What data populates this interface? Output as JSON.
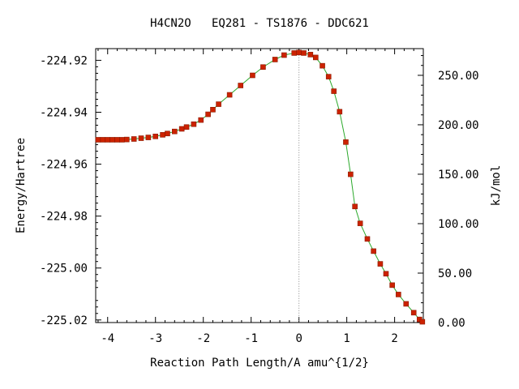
{
  "chart_data": {
    "type": "line",
    "title": "H4CN2O   EQ281 - TS1876 - DDC621",
    "xlabel": "Reaction Path Length/A amu^{1/2}",
    "ylabel_left": "Energy/Hartree",
    "ylabel_right": "kJ/mol",
    "xlim": [
      -4.25,
      2.6
    ],
    "ylim": [
      -225.021,
      -224.9155
    ],
    "ylim_right": [
      0.0,
      277.0
    ],
    "x_ticks": [
      -4,
      -3,
      -2,
      -1,
      0,
      1,
      2
    ],
    "x_tick_labels": [
      "-4",
      "-3",
      "-2",
      "-1",
      "0",
      "1",
      "2"
    ],
    "y_ticks": [
      -224.92,
      -224.94,
      -224.96,
      -224.98,
      -225.0,
      -225.02
    ],
    "y_tick_labels": [
      "-224.92",
      "-224.94",
      "-224.96",
      "-224.98",
      "-225.00",
      "-225.02"
    ],
    "y2_ticks": [
      250,
      200,
      150,
      100,
      50,
      0
    ],
    "y2_tick_labels": [
      "250.00",
      "200.00",
      "150.00",
      "100.00",
      "50.00",
      "0.00"
    ],
    "ts_line_x": 0.0,
    "grid": false,
    "line_color": "#2aa82a",
    "marker_color": "#cc2200",
    "points": [
      [
        -4.2,
        -224.9506
      ],
      [
        -4.1,
        -224.9506
      ],
      [
        -4.0,
        -224.9506
      ],
      [
        -3.9,
        -224.9506
      ],
      [
        -3.8,
        -224.9506
      ],
      [
        -3.7,
        -224.9506
      ],
      [
        -3.6,
        -224.9505
      ],
      [
        -3.45,
        -224.9503
      ],
      [
        -3.3,
        -224.95
      ],
      [
        -3.15,
        -224.9497
      ],
      [
        -3.0,
        -224.9493
      ],
      [
        -2.85,
        -224.9487
      ],
      [
        -2.75,
        -224.9482
      ],
      [
        -2.6,
        -224.9474
      ],
      [
        -2.45,
        -224.9464
      ],
      [
        -2.35,
        -224.9457
      ],
      [
        -2.2,
        -224.9446
      ],
      [
        -2.05,
        -224.943
      ],
      [
        -1.9,
        -224.9408
      ],
      [
        -1.8,
        -224.939
      ],
      [
        -1.68,
        -224.9369
      ],
      [
        -1.45,
        -224.9333
      ],
      [
        -1.22,
        -224.9297
      ],
      [
        -0.97,
        -224.9258
      ],
      [
        -0.75,
        -224.9226
      ],
      [
        -0.5,
        -224.9197
      ],
      [
        -0.31,
        -224.918
      ],
      [
        -0.1,
        -224.9172
      ],
      [
        0.0,
        -224.917
      ],
      [
        0.1,
        -224.9172
      ],
      [
        0.24,
        -224.9178
      ],
      [
        0.35,
        -224.9189
      ],
      [
        0.49,
        -224.9221
      ],
      [
        0.62,
        -224.9263
      ],
      [
        0.73,
        -224.9319
      ],
      [
        0.85,
        -224.9398
      ],
      [
        0.98,
        -224.9515
      ],
      [
        1.08,
        -224.9639
      ],
      [
        1.17,
        -224.9763
      ],
      [
        1.28,
        -224.9828
      ],
      [
        1.43,
        -224.9888
      ],
      [
        1.56,
        -224.9935
      ],
      [
        1.7,
        -224.9984
      ],
      [
        1.82,
        -225.0022
      ],
      [
        1.95,
        -225.0066
      ],
      [
        2.08,
        -225.0102
      ],
      [
        2.24,
        -225.0138
      ],
      [
        2.4,
        -225.0172
      ],
      [
        2.52,
        -225.0198
      ],
      [
        2.58,
        -225.0207
      ]
    ]
  }
}
